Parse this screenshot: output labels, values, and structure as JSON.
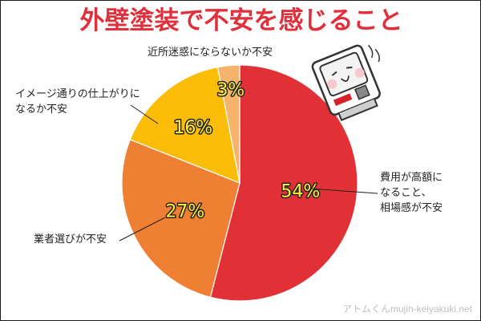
{
  "title": "外壁塗装で不安を感じること",
  "credit": "アトムくんmujin-keiyakuki.net",
  "chart_data": {
    "type": "pie",
    "slices": [
      {
        "label_lines": [
          "費用が高額に",
          "なること、",
          "相場感が不安"
        ],
        "value": 54,
        "value_label": "54%",
        "color": "#e13137"
      },
      {
        "label_lines": [
          "業者選びが不安"
        ],
        "value": 27,
        "value_label": "27%",
        "color": "#ee7f33"
      },
      {
        "label_lines": [
          "イメージ通りの仕上がりに",
          "なるか不安"
        ],
        "value": 16,
        "value_label": "16%",
        "color": "#fbbd08"
      },
      {
        "label_lines": [
          "近所迷惑にならないか不安"
        ],
        "value": 3,
        "value_label": "3%",
        "color": "#f6b36b"
      }
    ]
  },
  "mascot": {
    "name": "robot-mascot-icon"
  }
}
